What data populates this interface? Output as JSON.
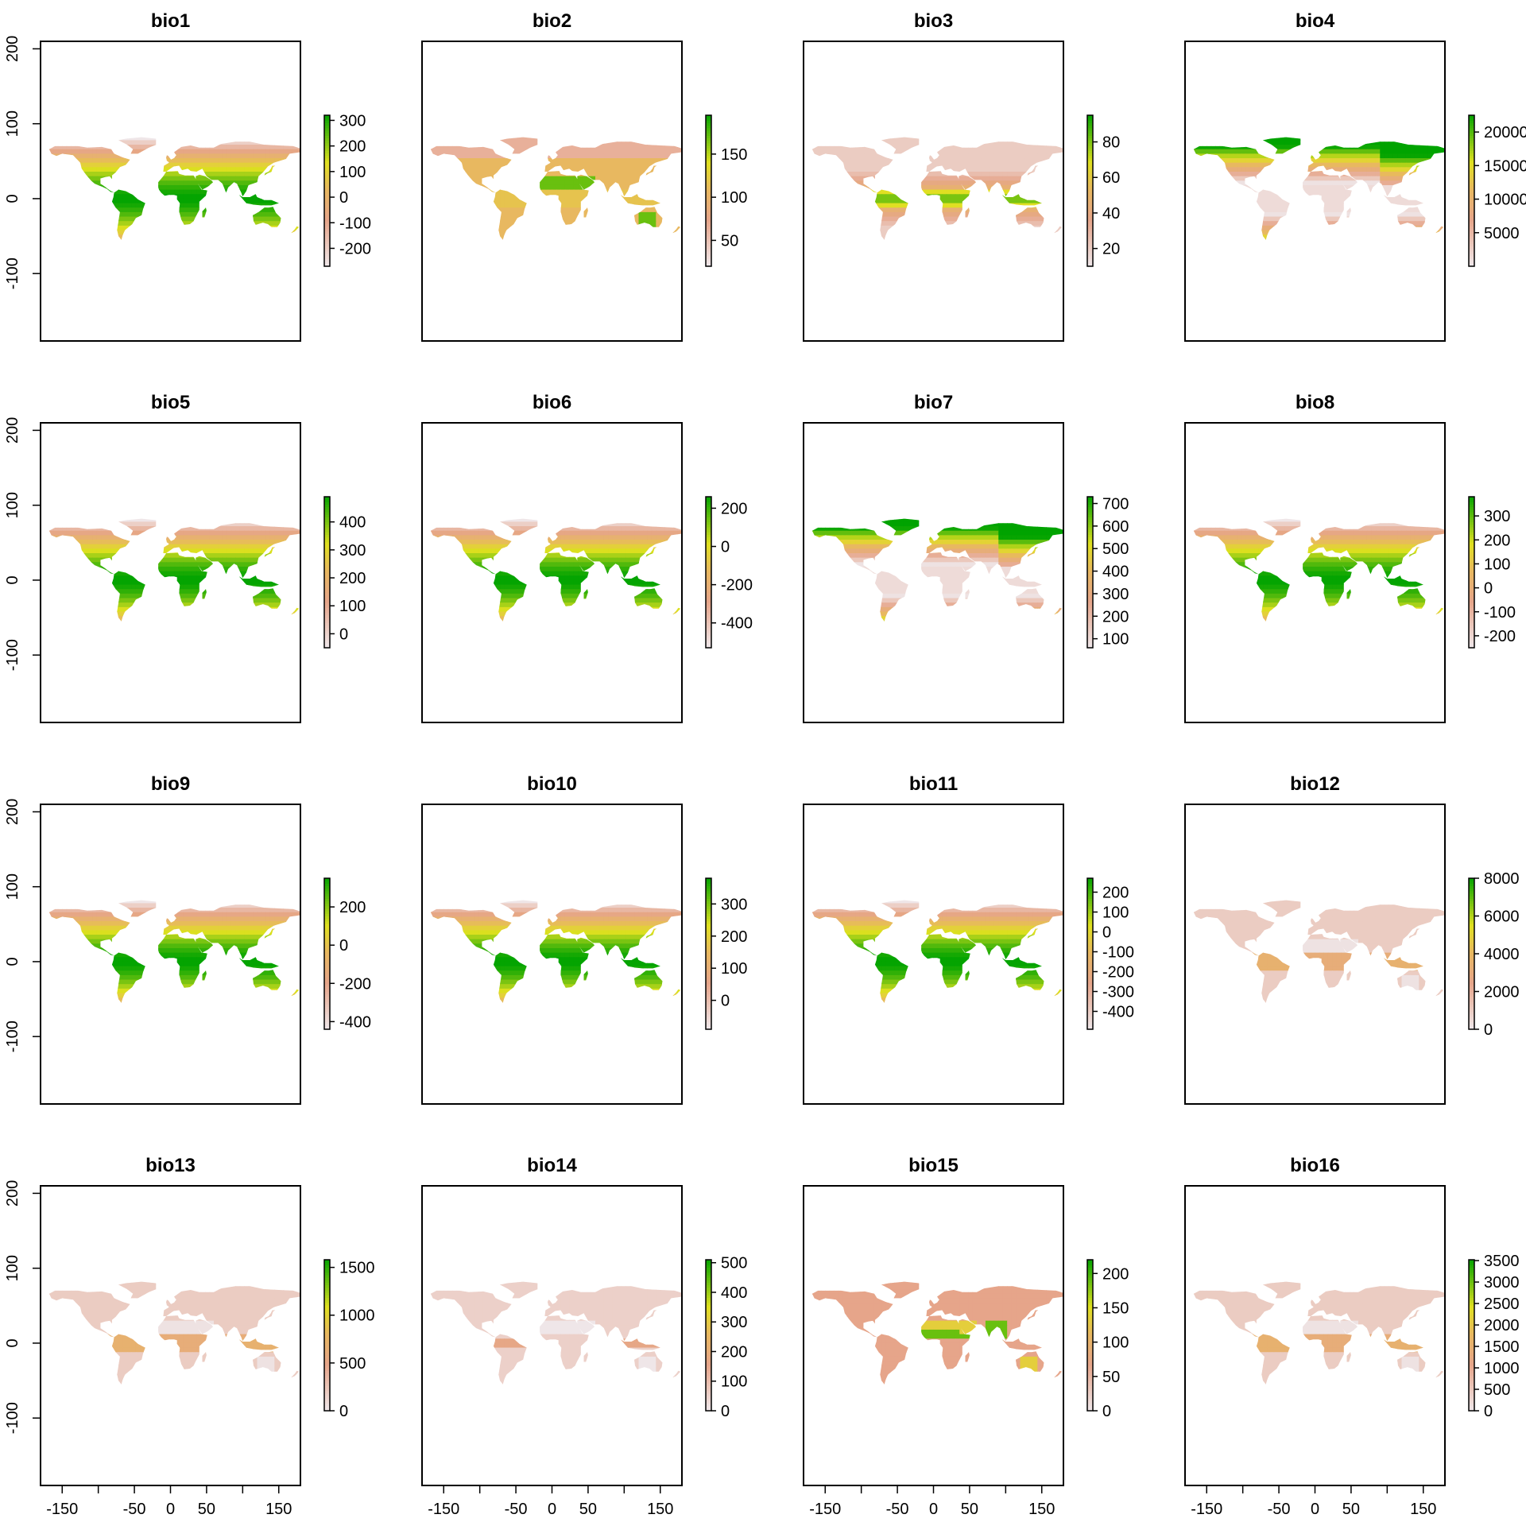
{
  "chart_data": {
    "type": "heatmap",
    "layout": {
      "rows": 4,
      "cols": 4
    },
    "xlim": [
      -180,
      180
    ],
    "ylim": [
      -190,
      210
    ],
    "x_ticks": [
      -150,
      -100,
      -50,
      0,
      50,
      100,
      150
    ],
    "x_tick_labels": [
      "-150",
      "",
      "-50",
      "0",
      "50",
      "",
      "150"
    ],
    "y_ticks": [
      -100,
      0,
      100,
      200
    ],
    "y_tick_labels": [
      "-100",
      "0",
      "100",
      "200"
    ],
    "palette": {
      "low": "#efe6e8",
      "mid_low": "#e6a58a",
      "mid": "#e8b860",
      "mid_high": "#e0e020",
      "high": "#00a300"
    },
    "panels": [
      {
        "title": "bio1",
        "legend_ticks": [
          "300",
          "200",
          "100",
          "0",
          "-100",
          "-200"
        ],
        "legend_values": [
          300,
          200,
          100,
          0,
          -100,
          -200
        ],
        "legend_range": [
          -270,
          320
        ],
        "pattern": "temperature"
      },
      {
        "title": "bio2",
        "legend_ticks": [
          "150",
          "100",
          "50"
        ],
        "legend_values": [
          150,
          100,
          50
        ],
        "legend_range": [
          20,
          195
        ],
        "pattern": "diurnal"
      },
      {
        "title": "bio3",
        "legend_ticks": [
          "80",
          "60",
          "40",
          "20"
        ],
        "legend_values": [
          80,
          60,
          40,
          20
        ],
        "legend_range": [
          10,
          95
        ],
        "pattern": "isothermality"
      },
      {
        "title": "bio4",
        "legend_ticks": [
          "20000",
          "15000",
          "10000",
          "5000"
        ],
        "legend_values": [
          20000,
          15000,
          10000,
          5000
        ],
        "legend_range": [
          0,
          22500
        ],
        "pattern": "seasonality"
      },
      {
        "title": "bio5",
        "legend_ticks": [
          "400",
          "300",
          "200",
          "100",
          "0"
        ],
        "legend_values": [
          400,
          300,
          200,
          100,
          0
        ],
        "legend_range": [
          -50,
          490
        ],
        "pattern": "temperature"
      },
      {
        "title": "bio6",
        "legend_ticks": [
          "200",
          "0",
          "-200",
          "-400"
        ],
        "legend_values": [
          200,
          0,
          -200,
          -400
        ],
        "legend_range": [
          -530,
          260
        ],
        "pattern": "temperature"
      },
      {
        "title": "bio7",
        "legend_ticks": [
          "700",
          "600",
          "500",
          "400",
          "300",
          "200",
          "100"
        ],
        "legend_values": [
          700,
          600,
          500,
          400,
          300,
          200,
          100
        ],
        "legend_range": [
          60,
          730
        ],
        "pattern": "seasonality"
      },
      {
        "title": "bio8",
        "legend_ticks": [
          "300",
          "200",
          "100",
          "0",
          "-100",
          "-200"
        ],
        "legend_values": [
          300,
          200,
          100,
          0,
          -100,
          -200
        ],
        "legend_range": [
          -250,
          380
        ],
        "pattern": "temperature"
      },
      {
        "title": "bio9",
        "legend_ticks": [
          "200",
          "0",
          "-200",
          "-400"
        ],
        "legend_values": [
          200,
          0,
          -200,
          -400
        ],
        "legend_range": [
          -440,
          350
        ],
        "pattern": "temperature"
      },
      {
        "title": "bio10",
        "legend_ticks": [
          "300",
          "200",
          "100",
          "0"
        ],
        "legend_values": [
          300,
          200,
          100,
          0
        ],
        "legend_range": [
          -90,
          380
        ],
        "pattern": "temperature"
      },
      {
        "title": "bio11",
        "legend_ticks": [
          "200",
          "100",
          "0",
          "-100",
          "-200",
          "-300",
          "-400"
        ],
        "legend_values": [
          200,
          100,
          0,
          -100,
          -200,
          -300,
          -400
        ],
        "legend_range": [
          -490,
          270
        ],
        "pattern": "temperature"
      },
      {
        "title": "bio12",
        "legend_ticks": [
          "8000",
          "6000",
          "4000",
          "2000",
          "0"
        ],
        "legend_values": [
          8000,
          6000,
          4000,
          2000,
          0
        ],
        "legend_range": [
          0,
          8000
        ],
        "pattern": "precipitation"
      },
      {
        "title": "bio13",
        "legend_ticks": [
          "1500",
          "1000",
          "500",
          "0"
        ],
        "legend_values": [
          1500,
          1000,
          500,
          0
        ],
        "legend_range": [
          0,
          1580
        ],
        "pattern": "precipitation"
      },
      {
        "title": "bio14",
        "legend_ticks": [
          "500",
          "400",
          "300",
          "200",
          "100",
          "0"
        ],
        "legend_values": [
          500,
          400,
          300,
          200,
          100,
          0
        ],
        "legend_range": [
          0,
          510
        ],
        "pattern": "precipitation_dry"
      },
      {
        "title": "bio15",
        "legend_ticks": [
          "200",
          "150",
          "100",
          "50",
          "0"
        ],
        "legend_values": [
          200,
          150,
          100,
          50,
          0
        ],
        "legend_range": [
          0,
          220
        ],
        "pattern": "precip_seasonality"
      },
      {
        "title": "bio16",
        "legend_ticks": [
          "3500",
          "3000",
          "2500",
          "2000",
          "1500",
          "1000",
          "500",
          "0"
        ],
        "legend_values": [
          3500,
          3000,
          2500,
          2000,
          1500,
          1000,
          500,
          0
        ],
        "legend_range": [
          0,
          3520
        ],
        "pattern": "precipitation"
      }
    ]
  }
}
